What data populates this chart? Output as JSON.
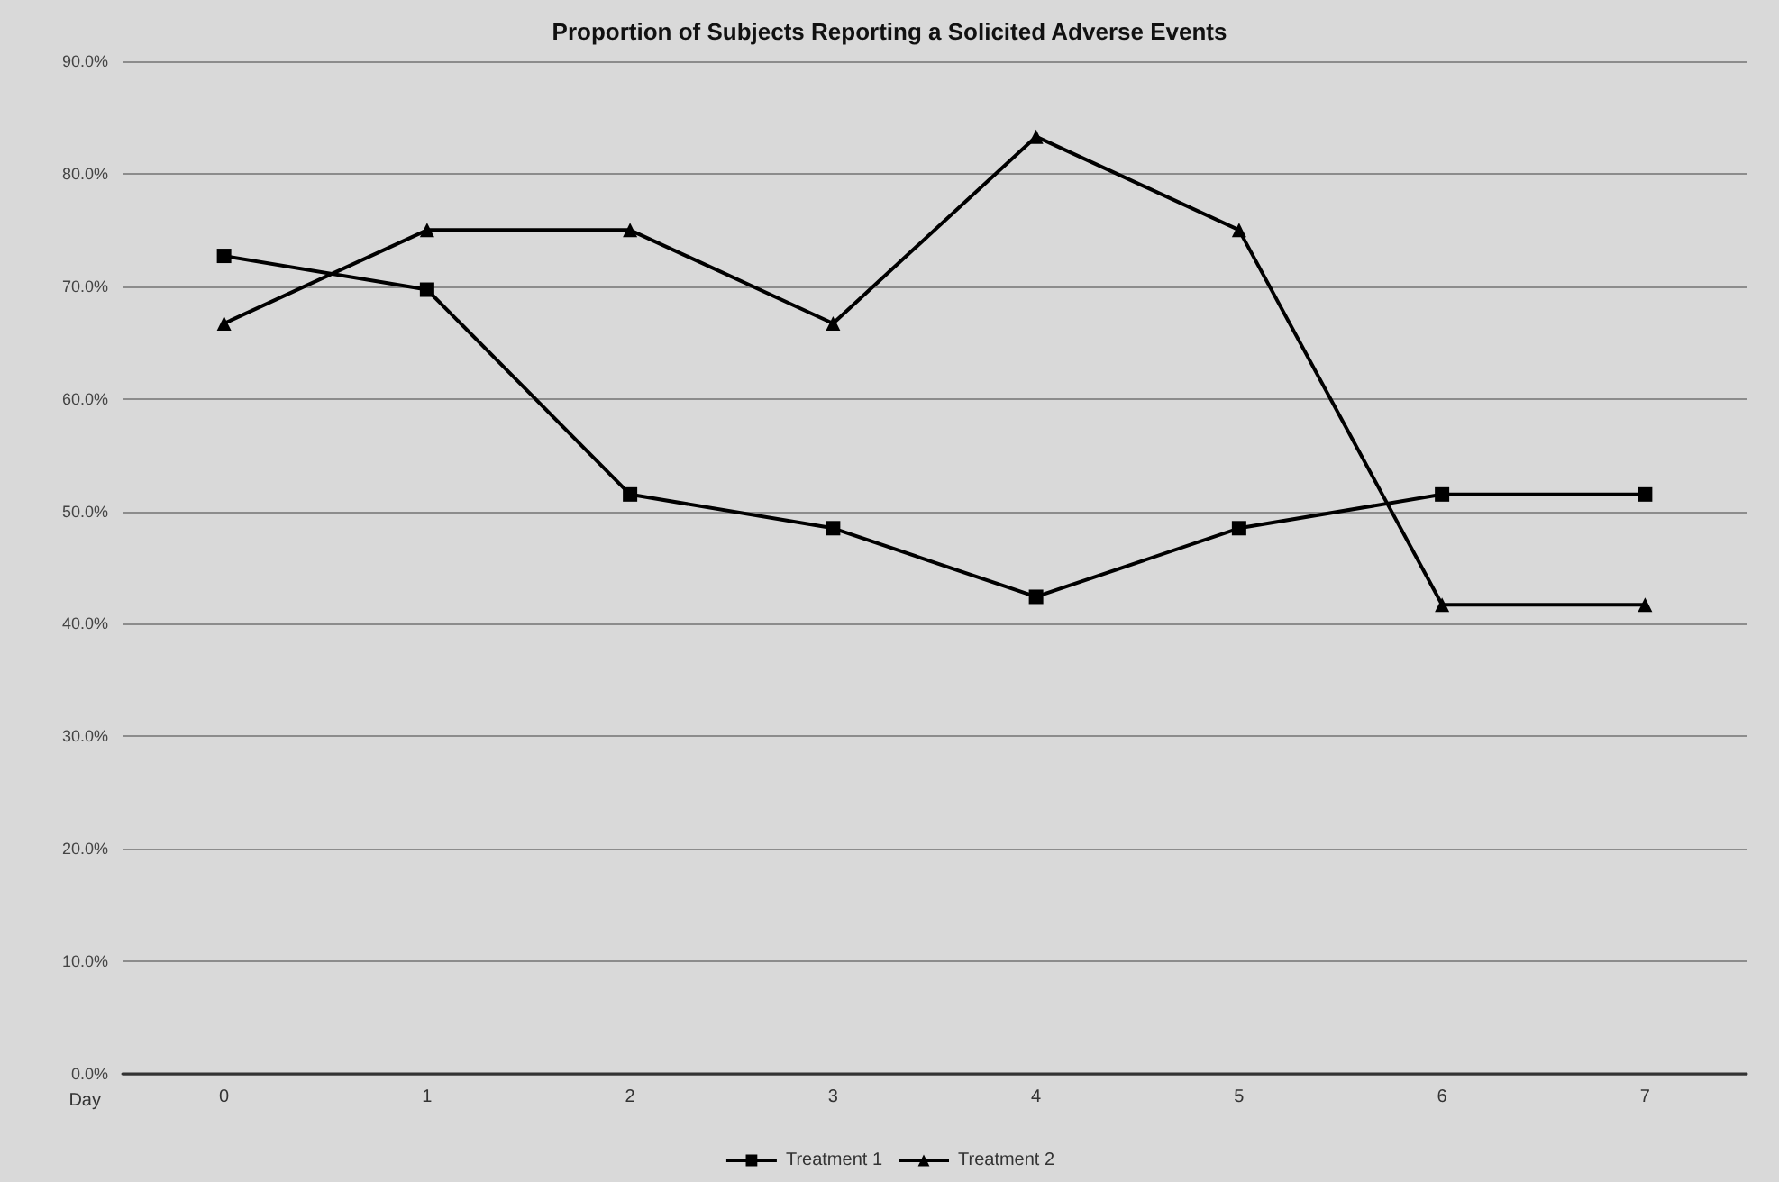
{
  "chart_data": {
    "type": "line",
    "title": "Proportion of Subjects Reporting a Solicited Adverse Events",
    "xlabel": "Day",
    "categories": [
      "0",
      "1",
      "2",
      "3",
      "4",
      "5",
      "6",
      "7"
    ],
    "series": [
      {
        "name": "Treatment 1",
        "color": "#000000",
        "marker": "square",
        "values": [
          72.7,
          69.7,
          51.5,
          48.5,
          42.4,
          48.5,
          51.5,
          51.5
        ]
      },
      {
        "name": "Treatment 2",
        "color": "#000000",
        "marker": "triangle",
        "values": [
          66.7,
          75.0,
          75.0,
          66.7,
          83.3,
          75.0,
          41.7,
          41.7
        ]
      }
    ],
    "ylim": [
      0,
      90
    ],
    "yticks": [
      {
        "value": 0,
        "label": "0.0%"
      },
      {
        "value": 10,
        "label": "10.0%"
      },
      {
        "value": 20,
        "label": "20.0%"
      },
      {
        "value": 30,
        "label": "30.0%"
      },
      {
        "value": 40,
        "label": "40.0%"
      },
      {
        "value": 50,
        "label": "50.0%"
      },
      {
        "value": 60,
        "label": "60.0%"
      },
      {
        "value": 70,
        "label": "70.0%"
      },
      {
        "value": 80,
        "label": "80.0%"
      },
      {
        "value": 90,
        "label": "90.0%"
      }
    ],
    "grid": "y",
    "legend": "bottom",
    "line_style": "solid"
  }
}
